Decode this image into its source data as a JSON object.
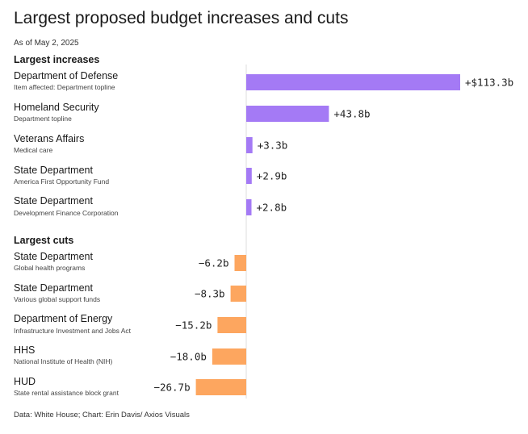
{
  "title": "Largest proposed budget increases and cuts",
  "subtitle": "As of May 2, 2025",
  "footer": "Data: White House; Chart: Erin Davis/ Axios Visuals",
  "colors": {
    "increase": "#a47af5",
    "cut": "#fda65f",
    "axis": "#dddddd"
  },
  "chart_data": {
    "type": "bar",
    "orientation": "horizontal",
    "unit": "billion USD",
    "groups": [
      {
        "label": "Largest increases",
        "items": [
          {
            "name": "Department of Defense",
            "detail": "Item affected: Department topline",
            "value": 113.3,
            "label": "+$113.3b"
          },
          {
            "name": "Homeland Security",
            "detail": "Department topline",
            "value": 43.8,
            "label": "+43.8b"
          },
          {
            "name": "Veterans Affairs",
            "detail": "Medical care",
            "value": 3.3,
            "label": "+3.3b"
          },
          {
            "name": "State Department",
            "detail": "America First Opportunity Fund",
            "value": 2.9,
            "label": "+2.9b"
          },
          {
            "name": "State Department",
            "detail": "Development Finance Corporation",
            "value": 2.8,
            "label": "+2.8b"
          }
        ]
      },
      {
        "label": "Largest cuts",
        "items": [
          {
            "name": "State Department",
            "detail": "Global health programs",
            "value": -6.2,
            "label": "−6.2b"
          },
          {
            "name": "State Department",
            "detail": "Various global support funds",
            "value": -8.3,
            "label": "−8.3b"
          },
          {
            "name": "Department of Energy",
            "detail": "Infrastructure Investment and Jobs Act",
            "value": -15.2,
            "label": "−15.2b"
          },
          {
            "name": "HHS",
            "detail": "National Institute of Health (NIH)",
            "value": -18.0,
            "label": "−18.0b"
          },
          {
            "name": "HUD",
            "detail": "State rental assistance block grant",
            "value": -26.7,
            "label": "−26.7b"
          }
        ]
      }
    ]
  }
}
